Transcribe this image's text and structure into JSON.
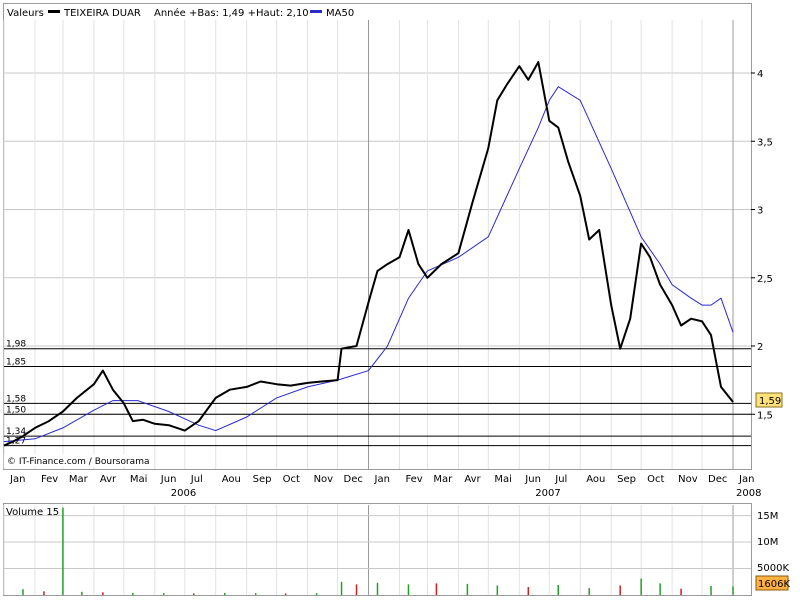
{
  "legend": {
    "valeurs": "Valeurs",
    "ticker": "TEIXEIRA DUAR",
    "stats": "Année +Bas: 1,49 +Haut: 2,10",
    "ma": "MA50"
  },
  "colors": {
    "price": "#000000",
    "ma50": "#2a2ad0",
    "volume_up": "#22a022",
    "volume_down": "#cc1f1f",
    "last_value_box": "#ffe27a",
    "volume_box": "#ffb142",
    "grid": "#c8c8c8",
    "level": "#000000"
  },
  "credit": "© IT-Finance.com / Boursorama",
  "price_axis": {
    "ticks": [
      "4",
      "3,5",
      "3",
      "2,5",
      "2",
      "1,5"
    ]
  },
  "last_value": "1,59",
  "levels": [
    {
      "label": "1,98",
      "value": 1.98
    },
    {
      "label": "1,85",
      "value": 1.85
    },
    {
      "label": "1,58",
      "value": 1.58
    },
    {
      "label": "1,50",
      "value": 1.5
    },
    {
      "label": "1,34",
      "value": 1.34
    },
    {
      "label": "1,27",
      "value": 1.27
    }
  ],
  "x_axis": {
    "months": [
      "Jan",
      "Fev",
      "Mar",
      "Avr",
      "Mai",
      "Jun",
      "Jul",
      "Aou",
      "Sep",
      "Oct",
      "Nov",
      "Dec",
      "Jan",
      "Fev",
      "Mar",
      "Avr",
      "Mai",
      "Jun",
      "Jul",
      "Aou",
      "Sep",
      "Oct",
      "Nov",
      "Dec",
      "Jan"
    ],
    "years": [
      "2006",
      "2007",
      "2008"
    ]
  },
  "volume_panel": {
    "title": "Volume 15",
    "ticks": [
      "15M",
      "10M",
      "5000K"
    ],
    "last": "1606K"
  },
  "chart_data": [
    {
      "type": "line",
      "title": "",
      "xlabel": "",
      "ylabel": "",
      "x_unit": "month",
      "ylim": [
        1.15,
        4.35
      ],
      "grid": true,
      "legend_position": "top-left",
      "series": [
        {
          "name": "TEIXEIRA DUAR",
          "x": [
            "2006-01-01",
            "2006-01-10",
            "2006-01-20",
            "2006-02-01",
            "2006-02-15",
            "2006-03-01",
            "2006-03-15",
            "2006-04-01",
            "2006-04-10",
            "2006-04-20",
            "2006-05-01",
            "2006-05-10",
            "2006-05-20",
            "2006-06-01",
            "2006-06-15",
            "2006-07-01",
            "2006-07-15",
            "2006-08-01",
            "2006-08-15",
            "2006-09-01",
            "2006-09-15",
            "2006-10-01",
            "2006-10-15",
            "2006-11-01",
            "2006-11-15",
            "2006-12-01",
            "2006-12-05",
            "2006-12-20",
            "2007-01-01",
            "2007-01-10",
            "2007-01-20",
            "2007-02-01",
            "2007-02-10",
            "2007-02-20",
            "2007-03-01",
            "2007-03-15",
            "2007-04-01",
            "2007-04-15",
            "2007-05-01",
            "2007-05-10",
            "2007-05-20",
            "2007-06-01",
            "2007-06-10",
            "2007-06-20",
            "2007-07-01",
            "2007-07-10",
            "2007-07-20",
            "2007-08-01",
            "2007-08-10",
            "2007-08-20",
            "2007-09-01",
            "2007-09-10",
            "2007-09-20",
            "2007-10-01",
            "2007-10-10",
            "2007-10-20",
            "2007-11-01",
            "2007-11-10",
            "2007-11-20",
            "2007-12-01",
            "2007-12-10",
            "2007-12-20",
            "2008-01-01"
          ],
          "values": [
            1.27,
            1.3,
            1.34,
            1.4,
            1.45,
            1.52,
            1.62,
            1.72,
            1.82,
            1.68,
            1.58,
            1.45,
            1.46,
            1.43,
            1.42,
            1.38,
            1.45,
            1.62,
            1.68,
            1.7,
            1.74,
            1.72,
            1.71,
            1.73,
            1.74,
            1.75,
            1.98,
            2.0,
            2.32,
            2.55,
            2.6,
            2.65,
            2.85,
            2.6,
            2.5,
            2.6,
            2.68,
            3.05,
            3.45,
            3.8,
            3.92,
            4.05,
            3.95,
            4.08,
            3.65,
            3.6,
            3.35,
            3.1,
            2.78,
            2.85,
            2.3,
            1.98,
            2.2,
            2.75,
            2.65,
            2.45,
            2.3,
            2.15,
            2.2,
            2.18,
            2.08,
            1.7,
            1.59
          ]
        },
        {
          "name": "MA50",
          "x": [
            "2006-01-01",
            "2006-02-01",
            "2006-03-01",
            "2006-04-01",
            "2006-04-20",
            "2006-05-15",
            "2006-06-15",
            "2006-07-15",
            "2006-08-01",
            "2006-09-01",
            "2006-10-01",
            "2006-11-01",
            "2006-12-01",
            "2007-01-01",
            "2007-01-20",
            "2007-02-10",
            "2007-03-01",
            "2007-04-01",
            "2007-05-01",
            "2007-06-01",
            "2007-06-20",
            "2007-07-01",
            "2007-07-10",
            "2007-08-01",
            "2007-09-01",
            "2007-10-01",
            "2007-10-20",
            "2007-11-01",
            "2007-11-20",
            "2007-12-01",
            "2007-12-10",
            "2007-12-20",
            "2008-01-01"
          ],
          "values": [
            1.3,
            1.32,
            1.4,
            1.53,
            1.6,
            1.6,
            1.52,
            1.42,
            1.38,
            1.48,
            1.62,
            1.7,
            1.75,
            1.82,
            2.0,
            2.35,
            2.55,
            2.65,
            2.8,
            3.3,
            3.6,
            3.8,
            3.9,
            3.8,
            3.3,
            2.8,
            2.6,
            2.45,
            2.35,
            2.3,
            2.3,
            2.35,
            2.1
          ]
        }
      ]
    },
    {
      "type": "bar",
      "title": "",
      "xlabel": "",
      "ylabel": "",
      "ylim": [
        0,
        17000000
      ],
      "series": [
        {
          "name": "Volume 15",
          "x": [
            "2006-01-20",
            "2006-02-10",
            "2006-03-01",
            "2006-03-20",
            "2006-04-10",
            "2006-05-10",
            "2006-06-10",
            "2006-07-10",
            "2006-08-10",
            "2006-09-10",
            "2006-10-10",
            "2006-11-10",
            "2006-12-05",
            "2006-12-20",
            "2007-01-10",
            "2007-02-10",
            "2007-03-10",
            "2007-04-10",
            "2007-05-10",
            "2007-06-10",
            "2007-07-10",
            "2007-08-10",
            "2007-09-10",
            "2007-10-01",
            "2007-10-20",
            "2007-11-10",
            "2007-12-10",
            "2008-01-01"
          ],
          "values": [
            1100000,
            700000,
            16500000,
            600000,
            500000,
            400000,
            350000,
            300000,
            400000,
            350000,
            300000,
            350000,
            2500000,
            2000000,
            2300000,
            2000000,
            2200000,
            2100000,
            1800000,
            1500000,
            1900000,
            1300000,
            1800000,
            3100000,
            2200000,
            1200000,
            1700000,
            1606000
          ]
        }
      ]
    }
  ]
}
